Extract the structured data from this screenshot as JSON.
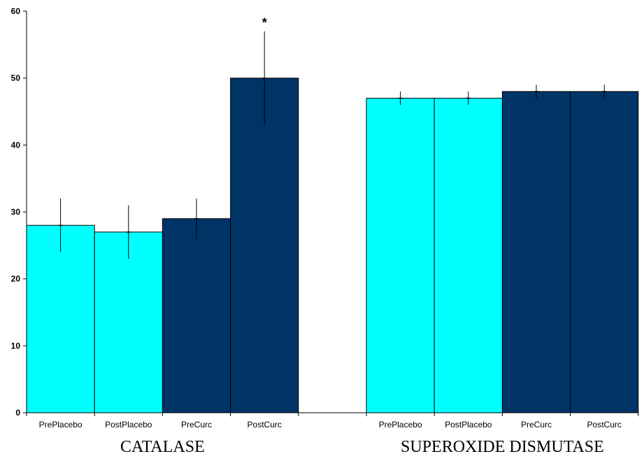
{
  "colors": {
    "placebo": "#00ffff",
    "curc": "#003366",
    "axis": "#000000"
  },
  "chart_data": {
    "type": "bar",
    "ylim": [
      0,
      60
    ],
    "yticks": [
      0,
      10,
      20,
      30,
      40,
      50,
      60
    ],
    "grid": false,
    "groups": [
      {
        "label": "CATALASE",
        "bars": [
          {
            "category": "PrePlacebo",
            "value": 28,
            "error": 4,
            "color_key": "placebo"
          },
          {
            "category": "PostPlacebo",
            "value": 27,
            "error": 4,
            "color_key": "placebo"
          },
          {
            "category": "PreCurc",
            "value": 29,
            "error": 3,
            "color_key": "curc"
          },
          {
            "category": "PostCurc",
            "value": 50,
            "error": 7,
            "color_key": "curc",
            "annotation": "*"
          }
        ]
      },
      {
        "label": "SUPEROXIDE DISMUTASE",
        "bars": [
          {
            "category": "PrePlacebo",
            "value": 47,
            "error": 1,
            "color_key": "placebo"
          },
          {
            "category": "PostPlacebo",
            "value": 47,
            "error": 1,
            "color_key": "placebo"
          },
          {
            "category": "PreCurc",
            "value": 48,
            "error": 1,
            "color_key": "curc"
          },
          {
            "category": "PostCurc",
            "value": 48,
            "error": 1,
            "color_key": "curc"
          }
        ]
      }
    ]
  }
}
